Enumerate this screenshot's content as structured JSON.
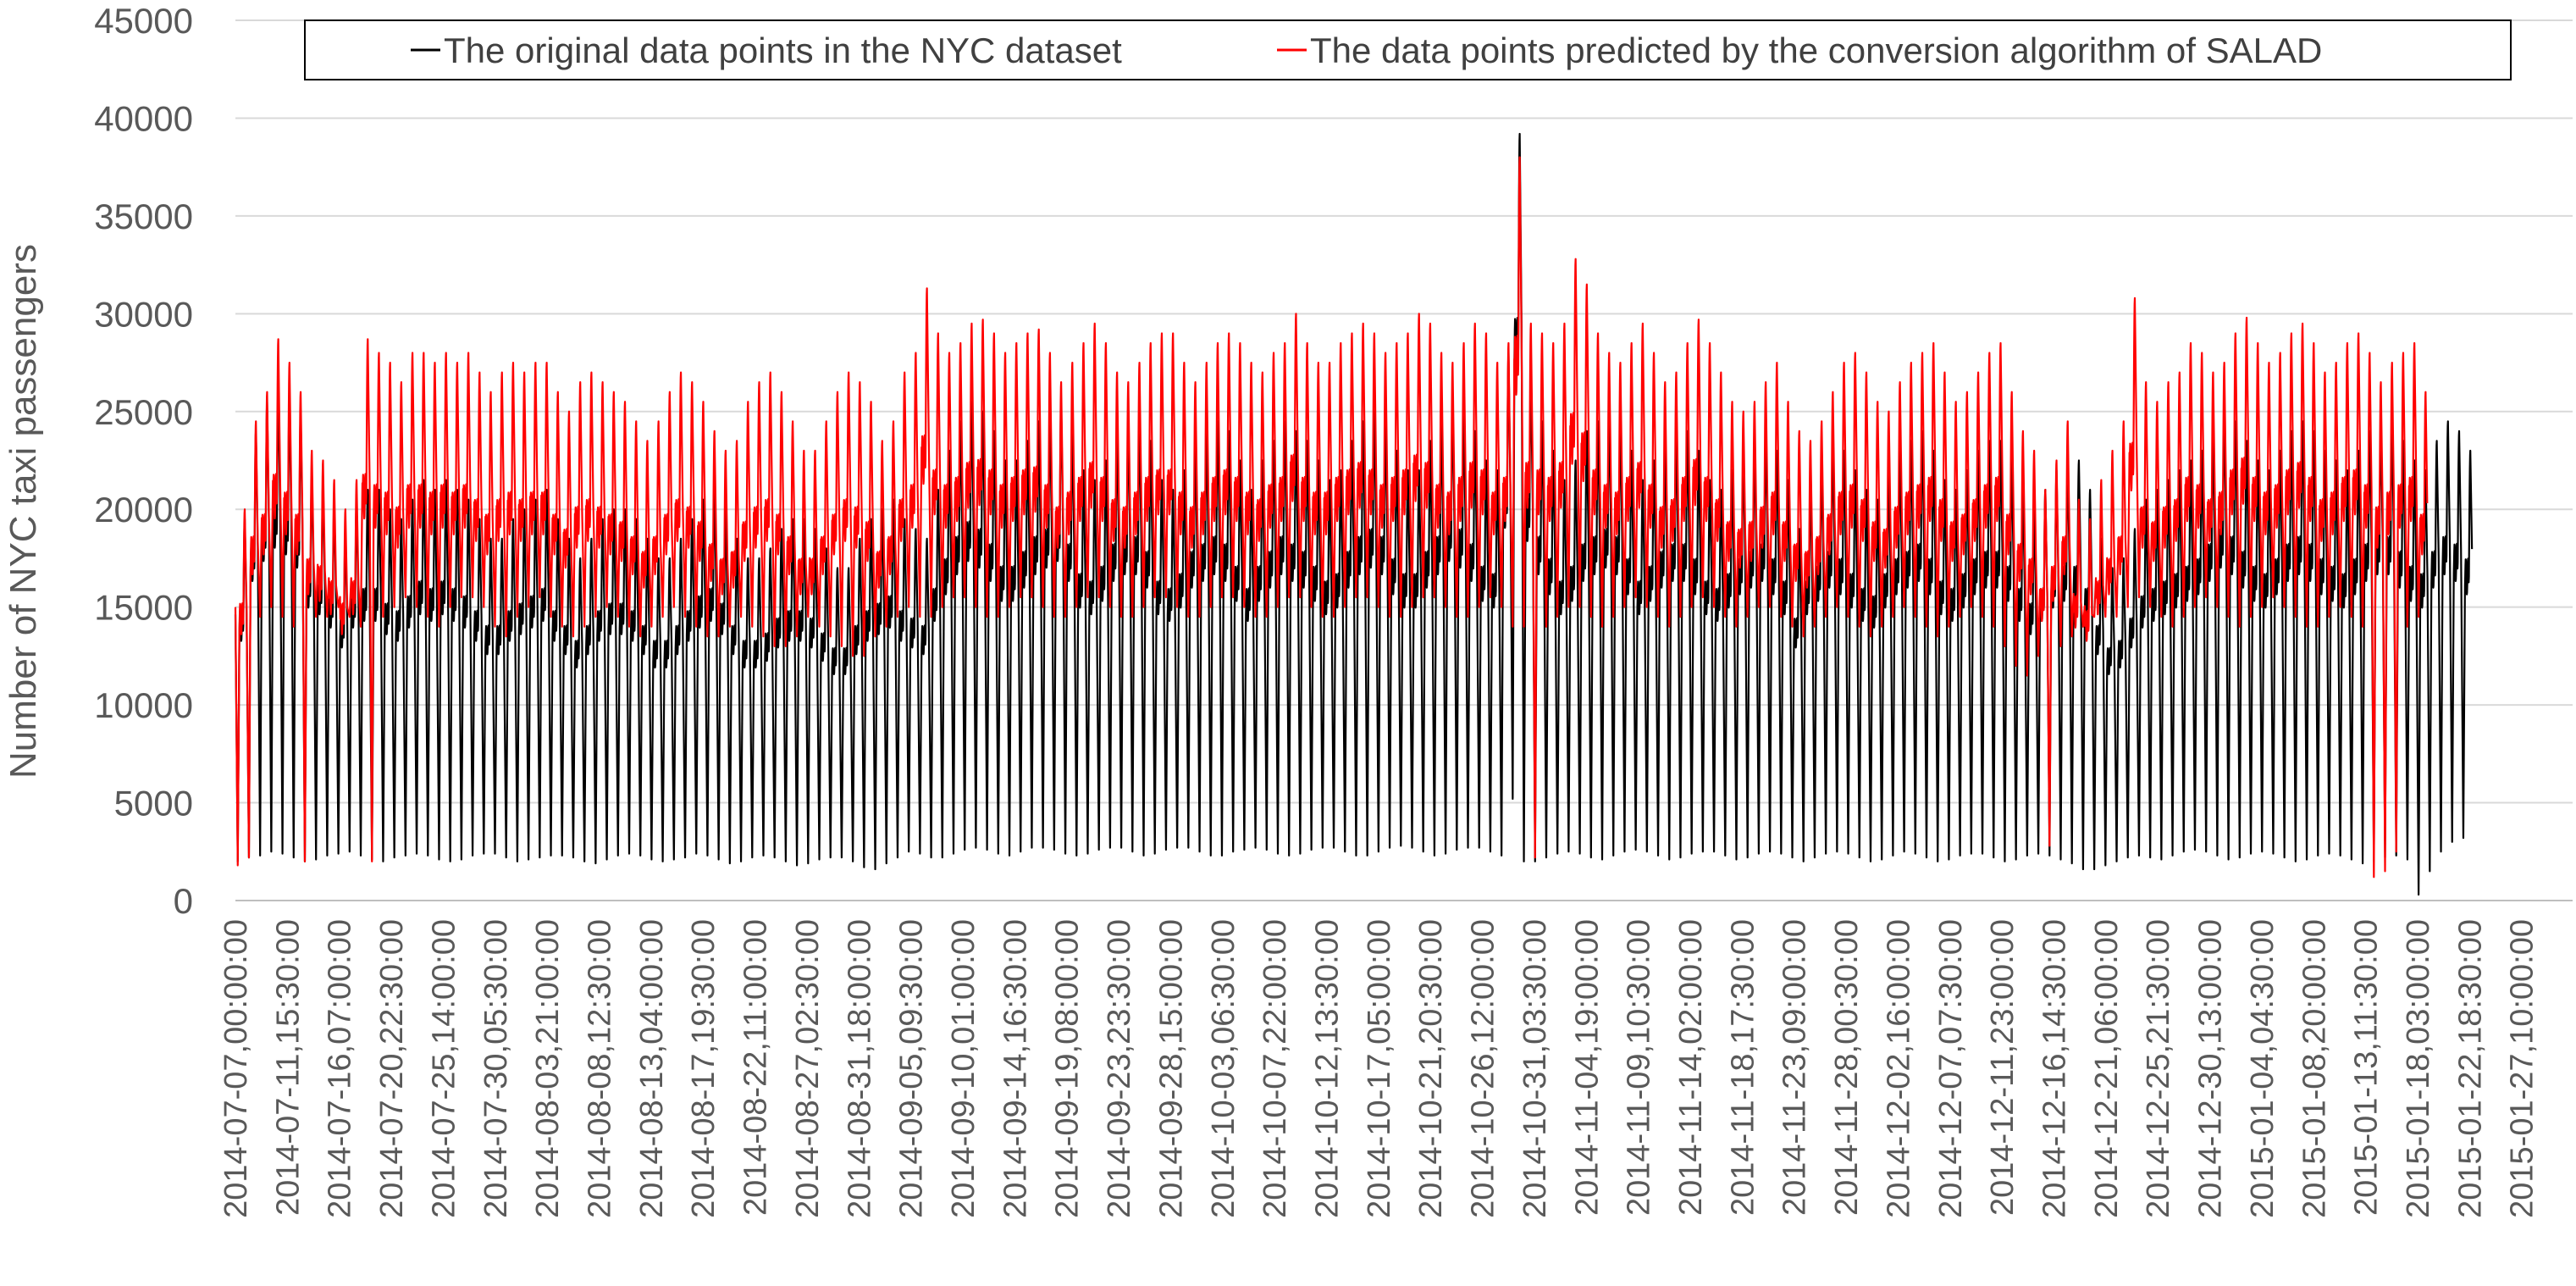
{
  "chart_data": {
    "type": "line",
    "title": "",
    "xlabel": "",
    "ylabel": "Number of NYC taxi passengers",
    "ylim": [
      0,
      45000
    ],
    "yticks": [
      0,
      5000,
      10000,
      15000,
      20000,
      25000,
      30000,
      35000,
      40000,
      45000
    ],
    "grid": "horizontal",
    "legend_position": "top",
    "x_tick_labels": [
      "2014-07-07,00:00:00",
      "2014-07-11,15:30:00",
      "2014-07-16,07:00:00",
      "2014-07-20,22:30:00",
      "2014-07-25,14:00:00",
      "2014-07-30,05:30:00",
      "2014-08-03,21:00:00",
      "2014-08-08,12:30:00",
      "2014-08-13,04:00:00",
      "2014-08-17,19:30:00",
      "2014-08-22,11:00:00",
      "2014-08-27,02:30:00",
      "2014-08-31,18:00:00",
      "2014-09-05,09:30:00",
      "2014-09-10,01:00:00",
      "2014-09-14,16:30:00",
      "2014-09-19,08:00:00",
      "2014-09-23,23:30:00",
      "2014-09-28,15:00:00",
      "2014-10-03,06:30:00",
      "2014-10-07,22:00:00",
      "2014-10-12,13:30:00",
      "2014-10-17,05:00:00",
      "2014-10-21,20:30:00",
      "2014-10-26,12:00:00",
      "2014-10-31,03:30:00",
      "2014-11-04,19:00:00",
      "2014-11-09,10:30:00",
      "2014-11-14,02:00:00",
      "2014-11-18,17:30:00",
      "2014-11-23,09:00:00",
      "2014-11-28,00:30:00",
      "2014-12-02,16:00:00",
      "2014-12-07,07:30:00",
      "2014-12-11,23:00:00",
      "2014-12-16,14:30:00",
      "2014-12-21,06:00:00",
      "2014-12-25,21:30:00",
      "2014-12-30,13:00:00",
      "2015-01-04,04:30:00",
      "2015-01-08,20:00:00",
      "2015-01-13,11:30:00",
      "2015-01-18,03:00:00",
      "2015-01-22,18:30:00",
      "2015-01-27,10:00:00"
    ],
    "x_range": [
      "2014-07-07,00:00:00",
      "2015-01-31,23:30:00"
    ],
    "series": [
      {
        "name": "The original data points in the NYC dataset",
        "color": "#000000",
        "daily_peaks": [
          19500,
          24000,
          25500,
          26500,
          26000,
          25000,
          22000,
          21500,
          20500,
          19000,
          20500,
          21000,
          21000,
          20000,
          19500,
          20500,
          21500,
          21000,
          21500,
          21000,
          20500,
          19500,
          18500,
          18500,
          19500,
          20000,
          20500,
          21000,
          19500,
          18500,
          17500,
          18500,
          19500,
          20000,
          20000,
          19500,
          18500,
          17500,
          17500,
          18500,
          19500,
          20500,
          21000,
          20000,
          18500,
          17500,
          17500,
          18000,
          19000,
          19500,
          19500,
          19000,
          18000,
          17000,
          17000,
          18500,
          19500,
          20000,
          20500,
          19500,
          19000,
          18500,
          21000,
          23000,
          24500,
          25500,
          25000,
          24000,
          22500,
          22500,
          23500,
          24500,
          25000,
          25500,
          24000,
          22000,
          21500,
          22500,
          24000,
          24500,
          24500,
          23500,
          21500,
          21000,
          22000,
          23500,
          24000,
          24500,
          24000,
          22500,
          21000,
          22500,
          23500,
          24500,
          24000,
          23500,
          22500,
          21500,
          22000,
          23500,
          24500,
          25000,
          24500,
          23000,
          22000,
          22000,
          23500,
          24500,
          25500,
          25000,
          24000,
          22500,
          22000,
          28000,
          39200,
          27000,
          24500,
          23000,
          21500,
          22500,
          24000,
          24500,
          25000,
          24500,
          23000,
          21500,
          22500,
          23500,
          24000,
          24000,
          23000,
          21500,
          21000,
          22000,
          23000,
          23500,
          24000,
          23000,
          21500,
          19000,
          21500,
          22500,
          23500,
          23000,
          22000,
          21000,
          20500,
          22000,
          23000,
          23500,
          24000,
          23000,
          21500,
          21000,
          22000,
          23000,
          23500,
          23500,
          22500,
          21000,
          20000,
          21000,
          22000,
          22500,
          22500,
          21000,
          18500,
          17000,
          17500,
          19000,
          20500,
          21000,
          21500,
          22000,
          22500,
          23000,
          24000,
          25000,
          24500,
          23500,
          22500,
          22000,
          23000,
          24000,
          24500,
          24000,
          23000,
          22500,
          22000,
          23000,
          24000,
          24500,
          24500,
          23500,
          22500,
          22000,
          23500,
          24500,
          24000,
          23000,
          12000,
          22000,
          25500,
          28000,
          28500
        ],
        "daily_troughs": [
          2000,
          2200,
          2300,
          2500,
          2400,
          2200,
          2000,
          2100,
          2300,
          2400,
          2500,
          2300,
          2100,
          2000,
          2200,
          2300,
          2400,
          2300,
          2100,
          2000,
          2100,
          2300,
          2400,
          2400,
          2200,
          2000,
          2100,
          2200,
          2300,
          2300,
          2200,
          2000,
          1900,
          2100,
          2300,
          2400,
          2300,
          2100,
          2000,
          2100,
          2200,
          2400,
          2300,
          2100,
          1900,
          2000,
          2200,
          2300,
          2200,
          2000,
          1800,
          1900,
          2100,
          2200,
          2200,
          2000,
          1700,
          1600,
          1900,
          2200,
          2500,
          2400,
          2200,
          2200,
          2400,
          2600,
          2700,
          2600,
          2400,
          2300,
          2500,
          2700,
          2700,
          2600,
          2400,
          2300,
          2400,
          2600,
          2700,
          2700,
          2500,
          2300,
          2400,
          2600,
          2700,
          2700,
          2500,
          2300,
          2300,
          2500,
          2600,
          2700,
          2600,
          2400,
          2300,
          2400,
          2600,
          2700,
          2700,
          2500,
          2300,
          2300,
          2500,
          2700,
          2800,
          2700,
          2500,
          2300,
          2400,
          2600,
          2700,
          2700,
          2500,
          2300,
          5200,
          2000,
          2000,
          2200,
          2400,
          2500,
          2400,
          2200,
          2100,
          2300,
          2500,
          2600,
          2500,
          2300,
          2100,
          2200,
          2400,
          2500,
          2500,
          2300,
          2100,
          2200,
          2400,
          2500,
          2400,
          2200,
          2000,
          2200,
          2400,
          2500,
          2400,
          2200,
          2000,
          2100,
          2300,
          2500,
          2400,
          2200,
          2000,
          2100,
          2300,
          2400,
          2400,
          2200,
          2000,
          2100,
          2300,
          2400,
          2300,
          2100,
          1900,
          1600,
          1600,
          1800,
          2000,
          2200,
          2300,
          2200,
          2100,
          2300,
          2500,
          2600,
          2500,
          2300,
          2100,
          2200,
          2400,
          2500,
          2400,
          2200,
          2000,
          2100,
          2300,
          2400,
          2300,
          2100,
          1900,
          2000,
          2200,
          2300,
          2100,
          300,
          1500,
          2500,
          3000,
          3200
        ]
      },
      {
        "name": "The data points predicted by the conversion algorithm of SALAD",
        "color": "#ff0000",
        "daily_peaks": [
          20000,
          24500,
          26000,
          28700,
          27500,
          26000,
          23000,
          22500,
          21500,
          20000,
          21500,
          28700,
          28000,
          27500,
          26500,
          28000,
          28000,
          27500,
          28000,
          27500,
          28000,
          27000,
          26000,
          27000,
          27500,
          27000,
          27500,
          27500,
          26000,
          25000,
          26500,
          27000,
          26500,
          26000,
          25500,
          24500,
          23500,
          24500,
          26000,
          27000,
          26500,
          25500,
          24000,
          23000,
          23500,
          25500,
          26500,
          27000,
          26000,
          24500,
          23000,
          23000,
          24500,
          26000,
          27000,
          26500,
          25500,
          23500,
          24500,
          27000,
          28000,
          31300,
          29000,
          28000,
          28500,
          29500,
          29700,
          29000,
          28000,
          28500,
          29000,
          29200,
          28000,
          26500,
          27500,
          28500,
          29500,
          28500,
          27000,
          26500,
          27500,
          28500,
          29000,
          29000,
          27500,
          26500,
          27500,
          28500,
          29000,
          28500,
          27500,
          27000,
          28000,
          28500,
          30000,
          28500,
          27500,
          27500,
          28500,
          29000,
          29500,
          29000,
          28000,
          28500,
          29000,
          30000,
          29500,
          28000,
          27500,
          28500,
          29500,
          29000,
          27500,
          28500,
          38000,
          29500,
          29000,
          28500,
          29500,
          32800,
          31500,
          29000,
          28000,
          27500,
          28500,
          29500,
          28000,
          26500,
          27000,
          28500,
          29700,
          28500,
          27000,
          25500,
          25000,
          25500,
          26500,
          27500,
          25500,
          24000,
          23500,
          24500,
          26000,
          27500,
          28000,
          27000,
          25500,
          25000,
          26500,
          27500,
          28000,
          28500,
          27000,
          25500,
          26000,
          27000,
          28000,
          28500,
          26000,
          24000,
          23000,
          21000,
          22500,
          24500,
          20500,
          19500,
          21500,
          23000,
          24500,
          30800,
          26500,
          25500,
          26500,
          27000,
          28500,
          28000,
          27000,
          27500,
          29000,
          29800,
          28500,
          27500,
          28000,
          29000,
          29500,
          28500,
          27000,
          27500,
          28500,
          29000,
          28000,
          26500,
          27500,
          28000,
          28500,
          26000,
          13000,
          21000,
          24500,
          26500,
          27500
        ],
        "daily_troughs": [
          1800,
          2200,
          14500,
          15000,
          14500,
          14000,
          2000,
          14500,
          14500,
          15000,
          14500,
          14000,
          2000,
          14500,
          15000,
          15500,
          15000,
          14500,
          14000,
          15000,
          15500,
          15500,
          15000,
          14000,
          13500,
          14500,
          15000,
          15500,
          14500,
          14000,
          13500,
          14000,
          14500,
          15000,
          14500,
          14000,
          13500,
          14000,
          14500,
          15000,
          14500,
          14000,
          13500,
          13500,
          14000,
          14500,
          14000,
          13500,
          13000,
          13000,
          13500,
          14500,
          14000,
          13500,
          13000,
          12500,
          12500,
          13500,
          14000,
          14500,
          15000,
          14500,
          14500,
          15000,
          15500,
          15500,
          15000,
          14500,
          14500,
          15000,
          15500,
          15500,
          15000,
          14500,
          14500,
          15000,
          15500,
          15500,
          15000,
          14500,
          14500,
          15000,
          15500,
          15500,
          15000,
          14500,
          14500,
          15000,
          15500,
          15500,
          15000,
          14500,
          14500,
          15000,
          15500,
          15500,
          15000,
          14500,
          14500,
          15000,
          15500,
          15500,
          15000,
          14500,
          14500,
          15000,
          15500,
          15500,
          15000,
          14500,
          14500,
          15000,
          15500,
          15000,
          14000,
          14000,
          2200,
          14000,
          14500,
          15000,
          15000,
          14500,
          14000,
          14500,
          15000,
          15500,
          15000,
          14500,
          14000,
          14500,
          15000,
          15500,
          15000,
          14500,
          14000,
          14500,
          15000,
          15000,
          14500,
          14000,
          13500,
          14000,
          14500,
          15000,
          14500,
          14000,
          13500,
          14000,
          14500,
          15000,
          14500,
          14000,
          13500,
          14000,
          14500,
          15000,
          14500,
          14000,
          13000,
          12000,
          11500,
          12500,
          2800,
          13000,
          13500,
          14000,
          14500,
          14500,
          14500,
          15000,
          15500,
          15000,
          14500,
          14000,
          14500,
          15000,
          15500,
          15000,
          14500,
          14000,
          14500,
          15000,
          15500,
          15000,
          14500,
          14000,
          14000,
          14500,
          15000,
          14500,
          14000,
          1200,
          1500,
          2500,
          14000,
          14500
        ]
      }
    ]
  }
}
